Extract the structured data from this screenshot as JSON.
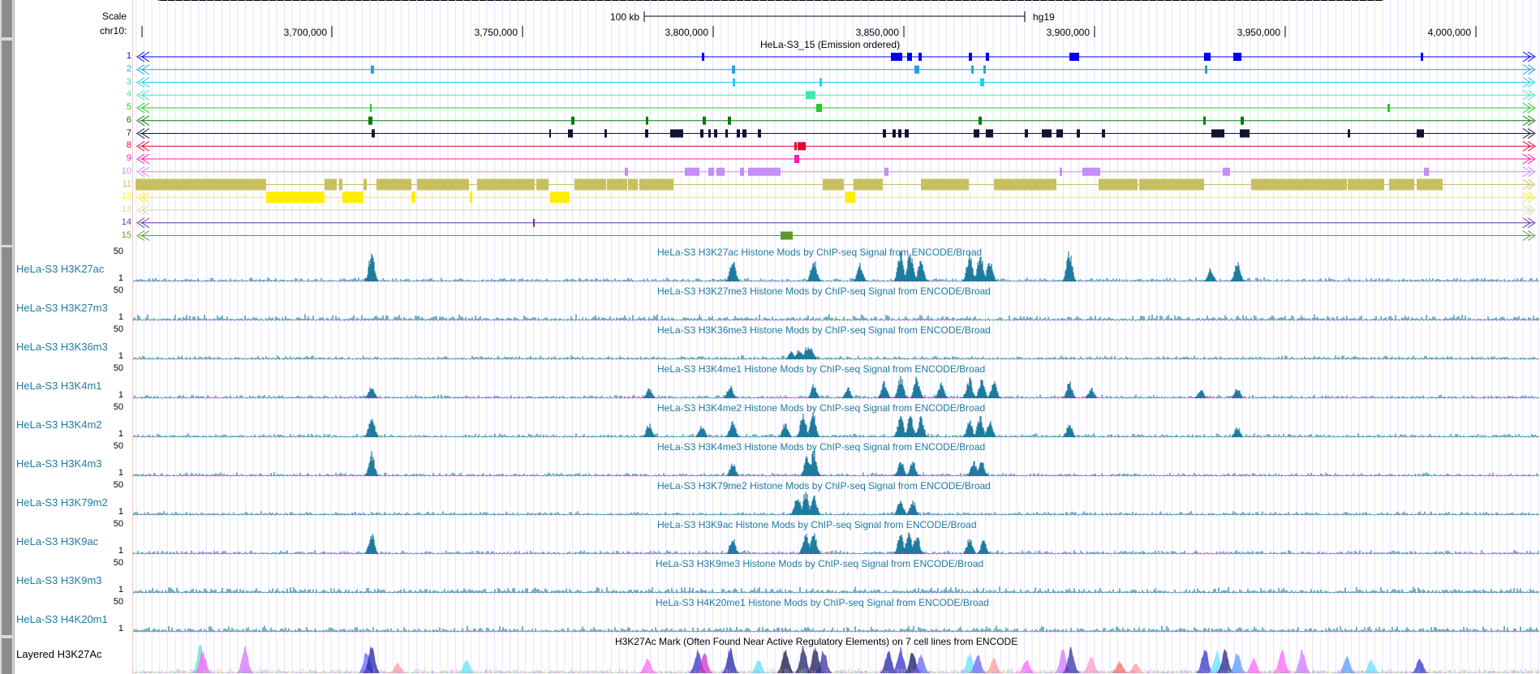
{
  "browser": {
    "scale_label": "Scale",
    "chrom_label": "chr10:",
    "scale_bar_label": "100 kb",
    "assembly": "hg19",
    "coord_ticks": [
      "3,700,000",
      "3,750,000",
      "3,800,000",
      "3,850,000",
      "3,900,000",
      "3,950,000",
      "4,000,000"
    ]
  },
  "segmentation": {
    "title": "HeLa-S3_15 (Emission ordered)",
    "states": [
      {
        "label": "1",
        "color": "#0000ee"
      },
      {
        "label": "2",
        "color": "#1aa6df"
      },
      {
        "label": "3",
        "color": "#24d0e6"
      },
      {
        "label": "4",
        "color": "#40e8b0"
      },
      {
        "label": "5",
        "color": "#22cc22"
      },
      {
        "label": "6",
        "color": "#0b7a0b"
      },
      {
        "label": "7",
        "color": "#111133"
      },
      {
        "label": "8",
        "color": "#e60033"
      },
      {
        "label": "9",
        "color": "#ff1ab3"
      },
      {
        "label": "10",
        "color": "#c48ef5"
      },
      {
        "label": "11",
        "color": "#c8c060"
      },
      {
        "label": "12",
        "color": "#ffee00"
      },
      {
        "label": "13",
        "color": "#d8d8a8"
      },
      {
        "label": "14",
        "color": "#6a2fa6"
      },
      {
        "label": "15",
        "color": "#5f9a2c"
      }
    ]
  },
  "signal_tracks": [
    {
      "label": "HeLa-S3 H3K27ac",
      "title": "HeLa-S3 H3K27ac Histone Mods by ChIP-seq Signal from ENCODE/Broad",
      "ymax": "50",
      "ymin": "1"
    },
    {
      "label": "HeLa-S3 H3K27m3",
      "title": "HeLa-S3 H3K27me3 Histone Mods by ChIP-seq Signal from ENCODE/Broad",
      "ymax": "50",
      "ymin": "1"
    },
    {
      "label": "HeLa-S3 H3K36m3",
      "title": "HeLa-S3 H3K36me3 Histone Mods by ChIP-seq Signal from ENCODE/Broad",
      "ymax": "50",
      "ymin": "1"
    },
    {
      "label": "HeLa-S3 H3K4m1",
      "title": "HeLa-S3 H3K4me1 Histone Mods by ChIP-seq Signal from ENCODE/Broad",
      "ymax": "50",
      "ymin": "1"
    },
    {
      "label": "HeLa-S3 H3K4m2",
      "title": "HeLa-S3 H3K4me2 Histone Mods by ChIP-seq Signal from ENCODE/Broad",
      "ymax": "50",
      "ymin": "1"
    },
    {
      "label": "HeLa-S3 H3K4m3",
      "title": "HeLa-S3 H3K4me3 Histone Mods by ChIP-seq Signal from ENCODE/Broad",
      "ymax": "50",
      "ymin": "1"
    },
    {
      "label": "HeLa-S3 H3K79m2",
      "title": "HeLa-S3 H3K79me2 Histone Mods by ChIP-seq Signal from ENCODE/Broad",
      "ymax": "50",
      "ymin": "1"
    },
    {
      "label": "HeLa-S3 H3K9ac",
      "title": "HeLa-S3 H3K9ac Histone Mods by ChIP-seq Signal from ENCODE/Broad",
      "ymax": "50",
      "ymin": "1"
    },
    {
      "label": "HeLa-S3 H3K9m3",
      "title": "HeLa-S3 H3K9me3 Histone Mods by ChIP-seq Signal from ENCODE/Broad",
      "ymax": "50",
      "ymin": "1"
    },
    {
      "label": "HeLa-S3 H4K20m1",
      "title": "HeLa-S3 H4K20me1 Histone Mods by ChIP-seq Signal from ENCODE/Broad",
      "ymax": "50",
      "ymin": "1"
    }
  ],
  "layered": {
    "label": "Layered H3K27Ac",
    "title": "H3K27Ac Mark (Often Found Near Active Regulatory Elements) on 7 cell lines from ENCODE"
  },
  "colors": {
    "signal": "#1f7a9f",
    "label": "#1f7a9f",
    "grid": "#e4e4ff"
  }
}
